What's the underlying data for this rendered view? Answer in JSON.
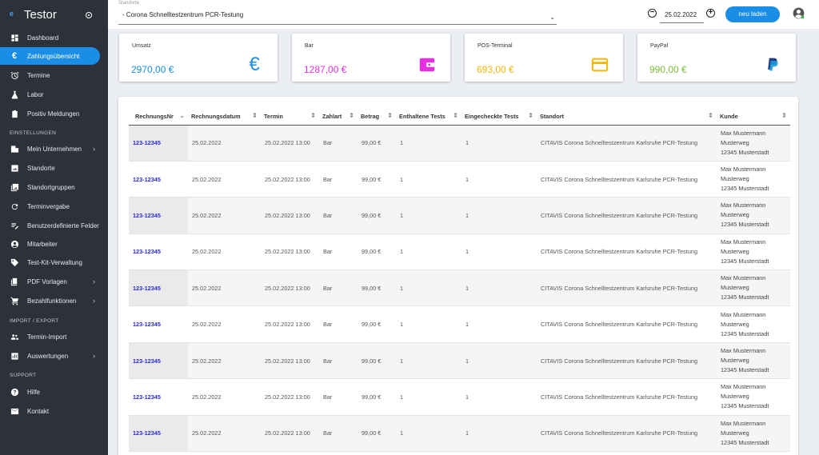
{
  "app": {
    "name": "Testor"
  },
  "sidebar": {
    "items": [
      {
        "label": "Dashboard",
        "icon": "dashboard-icon"
      },
      {
        "label": "Zahlungsübersicht",
        "icon": "euro-icon",
        "active": true
      },
      {
        "label": "Termine",
        "icon": "alarm-icon"
      },
      {
        "label": "Labor",
        "icon": "flask-icon"
      },
      {
        "label": "Positiv Meldungen",
        "icon": "clipboard-icon"
      }
    ],
    "section_settings": "EINSTELLUNGEN",
    "settings_items": [
      {
        "label": "Mein Unternehmen",
        "icon": "building-icon"
      },
      {
        "label": "Standorte",
        "icon": "image-icon"
      },
      {
        "label": "Standortgruppen",
        "icon": "images-icon"
      },
      {
        "label": "Terminvergabe",
        "icon": "refresh-icon"
      },
      {
        "label": "Benutzerdefinierte Felder",
        "icon": "list-edit-icon"
      },
      {
        "label": "Mitarbeiter",
        "icon": "account-icon"
      },
      {
        "label": "Test-Kit-Verwaltung",
        "icon": "tag-icon"
      },
      {
        "label": "PDF Vorlagen",
        "icon": "pdf-icon"
      },
      {
        "label": "Bezahlfunktionen",
        "icon": "cart-icon"
      }
    ],
    "section_import": "IMPORT / EXPORT",
    "import_items": [
      {
        "label": "Termin-Import",
        "icon": "group-icon"
      },
      {
        "label": "Auswertungen",
        "icon": "chart-icon"
      }
    ],
    "section_support": "SUPPORT",
    "support_items": [
      {
        "label": "Hilfe",
        "icon": "help-icon"
      },
      {
        "label": "Kontakt",
        "icon": "mail-icon"
      }
    ]
  },
  "header": {
    "location_label": "Standorte",
    "location_value": "- Corona Schnelltestzentrum PCR-Testung",
    "date": "25.02.2022",
    "reload_label": "neu laden"
  },
  "cards": [
    {
      "title": "Umsatz",
      "value": "2970,00 €",
      "color": "#1a8ee6",
      "icon": "euro-icon"
    },
    {
      "title": "Bar",
      "value": "1287,00 €",
      "color": "#e62ee0",
      "icon": "wallet-icon"
    },
    {
      "title": "POS-Terminal",
      "value": "693,00 €",
      "color": "#f2b705",
      "icon": "credit-card-icon"
    },
    {
      "title": "PayPal",
      "value": "990,00 €",
      "color": "#7bbf3a",
      "icon": "paypal-icon"
    }
  ],
  "table": {
    "columns": [
      "RechnungsNr",
      "Rechnungsdatum",
      "Termin",
      "Zahlart",
      "Betrag",
      "Enthaltene Tests",
      "Eingecheckte Tests",
      "Standort",
      "Kunde"
    ],
    "rows": [
      {
        "nr": "123-12345",
        "datum": "25.02.2022",
        "termin": "25.02.2022 13:00",
        "zahlart": "Bar",
        "betrag": "99,00 €",
        "enthalten": "1",
        "eingecheckt": "1",
        "standort": "CITAVIS Corona Schnelltestzentrum Karlsruhe PCR-Testung",
        "kunde_name": "Max Mustermann",
        "kunde_strasse": "Musterweg",
        "kunde_ort": "12345 Musterstadt"
      },
      {
        "nr": "123-12345",
        "datum": "25.02.2022",
        "termin": "25.02.2022 13:00",
        "zahlart": "Bar",
        "betrag": "99,00 €",
        "enthalten": "1",
        "eingecheckt": "1",
        "standort": "CITAVIS Corona Schnelltestzentrum Karlsruhe PCR-Testung",
        "kunde_name": "Max Mustermann",
        "kunde_strasse": "Musterweg",
        "kunde_ort": "12345 Musterstadt"
      },
      {
        "nr": "123-12345",
        "datum": "25.02.2022",
        "termin": "25.02.2022 13:00",
        "zahlart": "Bar",
        "betrag": "99,00 €",
        "enthalten": "1",
        "eingecheckt": "1",
        "standort": "CITAVIS Corona Schnelltestzentrum Karlsruhe PCR-Testung",
        "kunde_name": "Max Mustermann",
        "kunde_strasse": "Musterweg",
        "kunde_ort": "12345 Musterstadt"
      },
      {
        "nr": "123-12345",
        "datum": "25.02.2022",
        "termin": "25.02.2022 13:00",
        "zahlart": "Bar",
        "betrag": "99,00 €",
        "enthalten": "1",
        "eingecheckt": "1",
        "standort": "CITAVIS Corona Schnelltestzentrum Karlsruhe PCR-Testung",
        "kunde_name": "Max Mustermann",
        "kunde_strasse": "Musterweg",
        "kunde_ort": "12345 Musterstadt"
      },
      {
        "nr": "123-12345",
        "datum": "25.02.2022",
        "termin": "25.02.2022 13:00",
        "zahlart": "Bar",
        "betrag": "99,00 €",
        "enthalten": "1",
        "eingecheckt": "1",
        "standort": "CITAVIS Corona Schnelltestzentrum Karlsruhe PCR-Testung",
        "kunde_name": "Max Mustermann",
        "kunde_strasse": "Musterweg",
        "kunde_ort": "12345 Musterstadt"
      },
      {
        "nr": "123-12345",
        "datum": "25.02.2022",
        "termin": "25.02.2022 13:00",
        "zahlart": "Bar",
        "betrag": "99,00 €",
        "enthalten": "1",
        "eingecheckt": "1",
        "standort": "CITAVIS Corona Schnelltestzentrum Karlsruhe PCR-Testung",
        "kunde_name": "Max Mustermann",
        "kunde_strasse": "Musterweg",
        "kunde_ort": "12345 Musterstadt"
      },
      {
        "nr": "123-12345",
        "datum": "25.02.2022",
        "termin": "25.02.2022 13:00",
        "zahlart": "Bar",
        "betrag": "99,00 €",
        "enthalten": "1",
        "eingecheckt": "1",
        "standort": "CITAVIS Corona Schnelltestzentrum Karlsruhe PCR-Testung",
        "kunde_name": "Max Mustermann",
        "kunde_strasse": "Musterweg",
        "kunde_ort": "12345 Musterstadt"
      },
      {
        "nr": "123-12345",
        "datum": "25.02.2022",
        "termin": "25.02.2022 13:00",
        "zahlart": "Bar",
        "betrag": "99,00 €",
        "enthalten": "1",
        "eingecheckt": "1",
        "standort": "CITAVIS Corona Schnelltestzentrum Karlsruhe PCR-Testung",
        "kunde_name": "Max Mustermann",
        "kunde_strasse": "Musterweg",
        "kunde_ort": "12345 Musterstadt"
      },
      {
        "nr": "123-12345",
        "datum": "25.02.2022",
        "termin": "25.02.2022 13:00",
        "zahlart": "Bar",
        "betrag": "99,00 €",
        "enthalten": "1",
        "eingecheckt": "1",
        "standort": "CITAVIS Corona Schnelltestzentrum Karlsruhe PCR-Testung",
        "kunde_name": "Max Mustermann",
        "kunde_strasse": "Musterweg",
        "kunde_ort": "12345 Musterstadt"
      }
    ]
  }
}
